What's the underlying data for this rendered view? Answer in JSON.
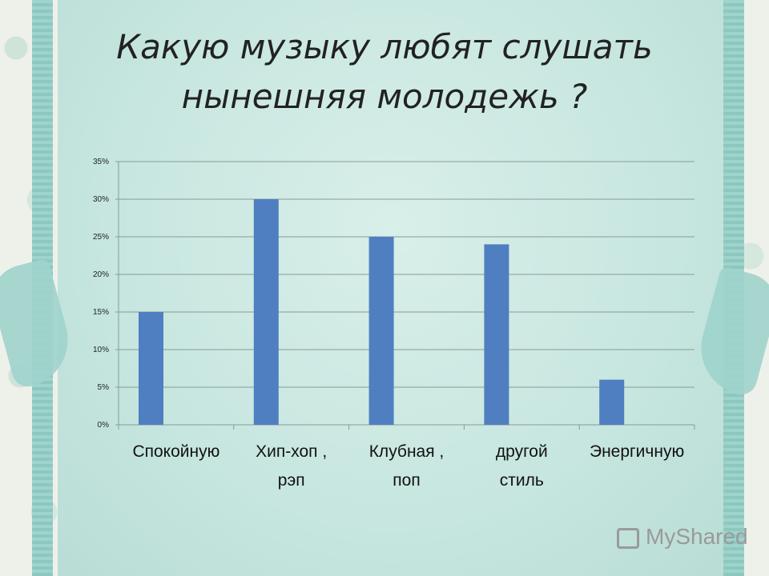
{
  "title": {
    "line1": "Какую музыку любят слушать",
    "line2": "нынешняя молодежь ?"
  },
  "chart_data": {
    "type": "bar",
    "categories": [
      [
        "Спокойную"
      ],
      [
        "Хип-хоп ,",
        "рэп"
      ],
      [
        "Клубная ,",
        "поп"
      ],
      [
        "другой",
        "стиль"
      ],
      [
        "Энергичную"
      ]
    ],
    "values": [
      15,
      30,
      25,
      24,
      6
    ],
    "ylim": [
      0,
      35
    ],
    "yticks": [
      0,
      5,
      10,
      15,
      20,
      25,
      30,
      35
    ],
    "ytick_labels": [
      "0%",
      "5%",
      "10%",
      "15%",
      "20%",
      "25%",
      "30%",
      "35%"
    ],
    "grid": true,
    "bar_color": "#4f7fc0"
  },
  "watermark": "MyShared"
}
